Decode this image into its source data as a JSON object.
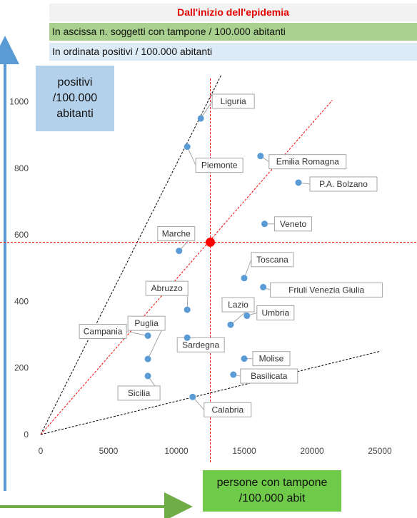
{
  "header": {
    "title": "Dall'inizio dell'epidemia",
    "x_desc": "In ascissa n. soggetti con tampone / 100.000 abitanti",
    "y_desc": "In ordinata positivi / 100.000 abitanti"
  },
  "y_box": "positivi\n/100.000\nabitanti",
  "x_box": "persone con tampone\n/100.000 abit",
  "colors": {
    "point": "#5b9bd5",
    "mean_point": "#ff0000",
    "mean_lines": "#ff0000",
    "ref_lines": "#000000",
    "arrows_y": "#5b9bd5",
    "arrows_x": "#70ad47"
  },
  "chart_data": {
    "type": "scatter",
    "title": "Dall'inizio dell'epidemia",
    "xlabel": "persone con tampone /100.000 abit",
    "ylabel": "positivi /100.000 abitanti",
    "xlim": [
      0,
      25000
    ],
    "ylim": [
      0,
      1100
    ],
    "xticks": [
      0,
      5000,
      10000,
      15000,
      20000,
      25000
    ],
    "yticks": [
      0,
      200,
      400,
      600,
      800,
      1000
    ],
    "grid": false,
    "points": [
      {
        "label": "Liguria",
        "x": 11800,
        "y": 950
      },
      {
        "label": "Piemonte",
        "x": 10800,
        "y": 865
      },
      {
        "label": "Emilia Romagna",
        "x": 16200,
        "y": 837
      },
      {
        "label": "P.A. Bolzano",
        "x": 19000,
        "y": 757
      },
      {
        "label": "Veneto",
        "x": 16500,
        "y": 633
      },
      {
        "label": "Marche",
        "x": 10200,
        "y": 552
      },
      {
        "label": "Toscana",
        "x": 15000,
        "y": 470
      },
      {
        "label": "Friuli Venezia Giulia",
        "x": 16400,
        "y": 443
      },
      {
        "label": "Abruzzo",
        "x": 10800,
        "y": 375
      },
      {
        "label": "Umbria",
        "x": 15200,
        "y": 357
      },
      {
        "label": "Lazio",
        "x": 14000,
        "y": 330
      },
      {
        "label": "Sardegna",
        "x": 10800,
        "y": 291
      },
      {
        "label": "Campania",
        "x": 7900,
        "y": 297
      },
      {
        "label": "Puglia",
        "x": 7900,
        "y": 227
      },
      {
        "label": "Molise",
        "x": 15000,
        "y": 228
      },
      {
        "label": "Basilicata",
        "x": 14200,
        "y": 180
      },
      {
        "label": "Sicilia",
        "x": 7900,
        "y": 176
      },
      {
        "label": "Calabria",
        "x": 11200,
        "y": 113
      }
    ],
    "mean_point": {
      "x": 12500,
      "y": 578
    },
    "reference_lines": [
      {
        "from": [
          0,
          0
        ],
        "to": [
          13300,
          1080
        ]
      },
      {
        "from": [
          0,
          0
        ],
        "to": [
          21500,
          1005
        ]
      },
      {
        "from": [
          0,
          0
        ],
        "to": [
          25000,
          250
        ]
      }
    ]
  }
}
